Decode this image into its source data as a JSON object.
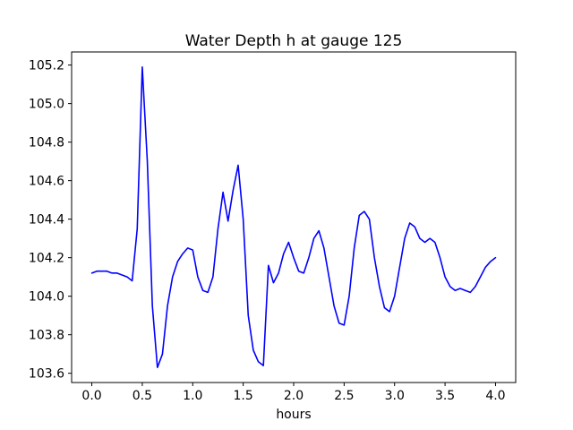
{
  "figure": {
    "title": "Water Depth h at gauge 125",
    "xlabel": "hours",
    "background_color": "#ffffff",
    "line_color": "#0000ff",
    "spine_color": "#000000"
  },
  "chart_data": {
    "type": "line",
    "title": "Water Depth h at gauge 125",
    "xlabel": "hours",
    "ylabel": "",
    "xlim": [
      -0.2,
      4.2
    ],
    "ylim": [
      103.552,
      105.268
    ],
    "xticks": [
      0.0,
      0.5,
      1.0,
      1.5,
      2.0,
      2.5,
      3.0,
      3.5,
      4.0
    ],
    "yticks": [
      103.6,
      103.8,
      104.0,
      104.2,
      104.4,
      104.6,
      104.8,
      105.0,
      105.2
    ],
    "grid": false,
    "legend_position": "none",
    "series": [
      {
        "name": "water-depth-h",
        "color": "#0000ff",
        "x": [
          0.0,
          0.05,
          0.1,
          0.15,
          0.2,
          0.25,
          0.3,
          0.35,
          0.4,
          0.45,
          0.5,
          0.55,
          0.6,
          0.65,
          0.7,
          0.75,
          0.8,
          0.85,
          0.9,
          0.95,
          1.0,
          1.05,
          1.1,
          1.15,
          1.2,
          1.25,
          1.3,
          1.35,
          1.4,
          1.45,
          1.5,
          1.55,
          1.6,
          1.65,
          1.7,
          1.75,
          1.8,
          1.85,
          1.9,
          1.95,
          2.0,
          2.05,
          2.1,
          2.15,
          2.2,
          2.25,
          2.3,
          2.35,
          2.4,
          2.45,
          2.5,
          2.55,
          2.6,
          2.65,
          2.7,
          2.75,
          2.8,
          2.85,
          2.9,
          2.95,
          3.0,
          3.05,
          3.1,
          3.15,
          3.2,
          3.25,
          3.3,
          3.35,
          3.4,
          3.45,
          3.5,
          3.55,
          3.6,
          3.65,
          3.7,
          3.75,
          3.8,
          3.85,
          3.9,
          3.95,
          4.0
        ],
        "y": [
          104.12,
          104.13,
          104.13,
          104.13,
          104.12,
          104.12,
          104.11,
          104.1,
          104.08,
          104.35,
          105.19,
          104.7,
          103.95,
          103.63,
          103.7,
          103.95,
          104.1,
          104.18,
          104.22,
          104.25,
          104.24,
          104.1,
          104.03,
          104.02,
          104.1,
          104.35,
          104.54,
          104.39,
          104.55,
          104.68,
          104.4,
          103.9,
          103.72,
          103.66,
          103.64,
          104.16,
          104.07,
          104.12,
          104.22,
          104.28,
          104.2,
          104.13,
          104.12,
          104.2,
          104.3,
          104.34,
          104.25,
          104.1,
          103.95,
          103.86,
          103.85,
          104.0,
          104.25,
          104.42,
          104.44,
          104.4,
          104.2,
          104.05,
          103.94,
          103.92,
          104.0,
          104.15,
          104.3,
          104.38,
          104.36,
          104.3,
          104.28,
          104.3,
          104.28,
          104.2,
          104.1,
          104.05,
          104.03,
          104.04,
          104.03,
          104.02,
          104.05,
          104.1,
          104.15,
          104.18,
          104.2
        ]
      }
    ]
  }
}
